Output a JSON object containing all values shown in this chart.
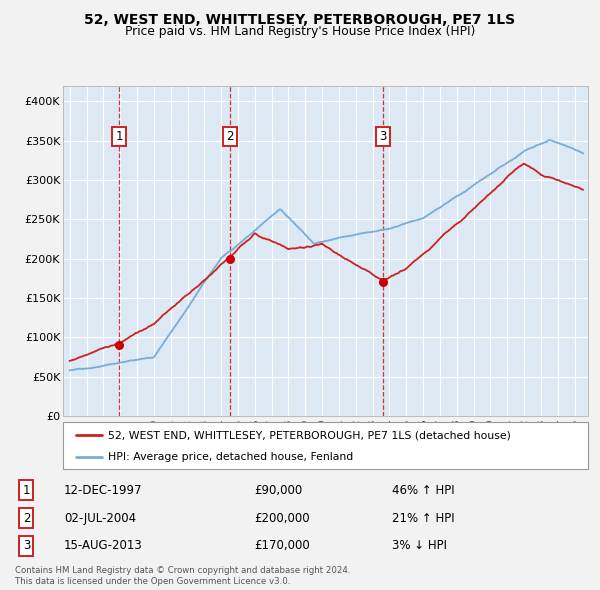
{
  "title1": "52, WEST END, WHITTLESEY, PETERBOROUGH, PE7 1LS",
  "title2": "Price paid vs. HM Land Registry's House Price Index (HPI)",
  "ylim": [
    0,
    420000
  ],
  "yticks": [
    0,
    50000,
    100000,
    150000,
    200000,
    250000,
    300000,
    350000,
    400000
  ],
  "ytick_labels": [
    "£0",
    "£50K",
    "£100K",
    "£150K",
    "£200K",
    "£250K",
    "£300K",
    "£350K",
    "£400K"
  ],
  "plot_bg_color": "#dce8f4",
  "grid_color": "#ffffff",
  "hpi_color": "#7aadd4",
  "price_color": "#cc2222",
  "sale_marker_color": "#cc0000",
  "annotation_box_color": "#cc2222",
  "vline_color": "#cc2222",
  "fig_bg_color": "#f2f2f2",
  "transactions": [
    {
      "num": 1,
      "date_label": "12-DEC-1997",
      "price": 90000,
      "pct": "46%",
      "direction": "↑",
      "year_x": 1997.95
    },
    {
      "num": 2,
      "date_label": "02-JUL-2004",
      "price": 200000,
      "pct": "21%",
      "direction": "↑",
      "year_x": 2004.5
    },
    {
      "num": 3,
      "date_label": "15-AUG-2013",
      "price": 170000,
      "pct": "3%",
      "direction": "↓",
      "year_x": 2013.62
    }
  ],
  "legend_entries": [
    "52, WEST END, WHITTLESEY, PETERBOROUGH, PE7 1LS (detached house)",
    "HPI: Average price, detached house, Fenland"
  ],
  "footer1": "Contains HM Land Registry data © Crown copyright and database right 2024.",
  "footer2": "This data is licensed under the Open Government Licence v3.0.",
  "xlim_min": 1994.6,
  "xlim_max": 2025.8
}
